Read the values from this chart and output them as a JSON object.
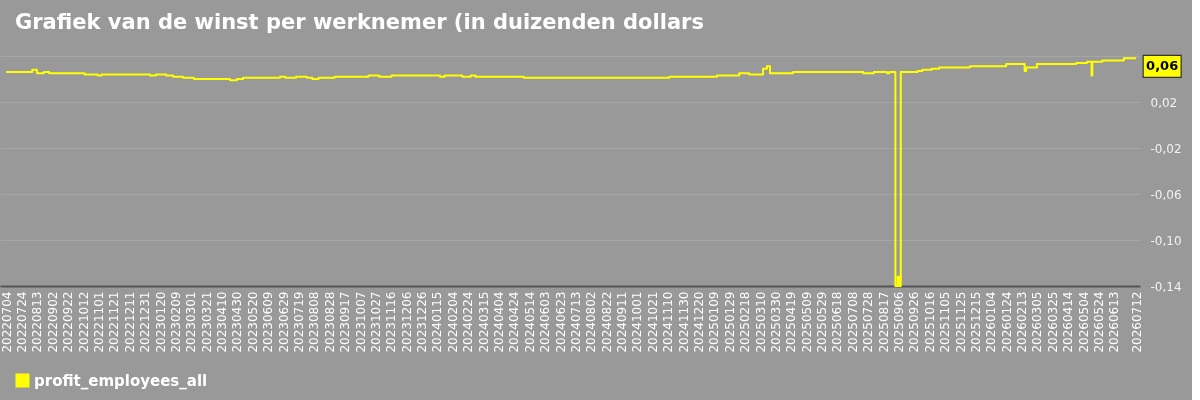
{
  "chart_data": {
    "type": "step",
    "title": "Grafiek van de winst per werknemer (in duizenden dollars",
    "x": [
      "2022-07-04",
      "2022-08-07",
      "2022-08-13",
      "2022-08-22",
      "2022-08-29",
      "2022-10-14",
      "2022-10-31",
      "2022-11-05",
      "2023-01-07",
      "2023-01-15",
      "2023-01-28",
      "2023-02-06",
      "2023-02-19",
      "2023-03-05",
      "2023-04-21",
      "2023-04-30",
      "2023-05-08",
      "2023-06-25",
      "2023-07-02",
      "2023-07-16",
      "2023-07-30",
      "2023-08-06",
      "2023-08-14",
      "2023-09-04",
      "2023-10-18",
      "2023-11-01",
      "2023-11-17",
      "2024-01-19",
      "2024-01-25",
      "2024-02-17",
      "2024-02-28",
      "2024-03-05",
      "2024-05-07",
      "2024-11-12",
      "2025-01-13",
      "2025-02-11",
      "2025-02-24",
      "2025-03-14",
      "2025-03-19",
      "2025-03-23",
      "2025-04-22",
      "2025-07-22",
      "2025-08-05",
      "2025-08-22",
      "2025-08-25",
      "2025-09-02",
      "2025-09-05",
      "2025-09-07",
      "2025-09-09",
      "2025-10-01",
      "2025-10-07",
      "2025-10-19",
      "2025-10-29",
      "2025-12-08",
      "2026-01-24",
      "2026-02-17",
      "2026-02-19",
      "2026-03-05",
      "2026-04-25",
      "2026-05-09",
      "2026-05-15",
      "2026-05-16",
      "2026-05-29",
      "2026-06-26",
      "2026-07-12"
    ],
    "series": [
      {
        "name": "profit_employees_all",
        "color": "#ffff00",
        "values": [
          0.046,
          0.048,
          0.045,
          0.046,
          0.045,
          0.044,
          0.043,
          0.044,
          0.043,
          0.044,
          0.043,
          0.042,
          0.041,
          0.04,
          0.039,
          0.04,
          0.041,
          0.042,
          0.041,
          0.042,
          0.041,
          0.04,
          0.041,
          0.042,
          0.043,
          0.042,
          0.043,
          0.042,
          0.043,
          0.042,
          0.043,
          0.042,
          0.041,
          0.042,
          0.043,
          0.045,
          0.044,
          0.049,
          0.051,
          0.045,
          0.046,
          0.045,
          0.046,
          0.045,
          0.046,
          -0.14,
          -0.132,
          -0.14,
          0.046,
          0.047,
          0.048,
          0.049,
          0.05,
          0.051,
          0.053,
          0.047,
          0.05,
          0.053,
          0.054,
          0.055,
          0.043,
          0.055,
          0.056,
          0.058,
          0.058
        ]
      }
    ],
    "xlim": [
      "2022-06-26",
      "2026-07-17"
    ],
    "xticks": [
      {
        "value": "2022-07-04",
        "label": "20220704"
      },
      {
        "value": "2022-07-24",
        "label": "20220724"
      },
      {
        "value": "2022-08-13",
        "label": "20220813"
      },
      {
        "value": "2022-09-02",
        "label": "20220902"
      },
      {
        "value": "2022-09-22",
        "label": "20220922"
      },
      {
        "value": "2022-10-12",
        "label": "20221012"
      },
      {
        "value": "2022-11-01",
        "label": "20221101"
      },
      {
        "value": "2022-11-21",
        "label": "20221121"
      },
      {
        "value": "2022-12-11",
        "label": "20221211"
      },
      {
        "value": "2022-12-31",
        "label": "20221231"
      },
      {
        "value": "2023-01-20",
        "label": "20230120"
      },
      {
        "value": "2023-02-09",
        "label": "20230209"
      },
      {
        "value": "2023-03-01",
        "label": "20230301"
      },
      {
        "value": "2023-03-21",
        "label": "20230321"
      },
      {
        "value": "2023-04-10",
        "label": "20230410"
      },
      {
        "value": "2023-04-30",
        "label": "20230430"
      },
      {
        "value": "2023-05-20",
        "label": "20230520"
      },
      {
        "value": "2023-06-09",
        "label": "20230609"
      },
      {
        "value": "2023-06-29",
        "label": "20230629"
      },
      {
        "value": "2023-07-19",
        "label": "20230719"
      },
      {
        "value": "2023-08-08",
        "label": "20230808"
      },
      {
        "value": "2023-08-28",
        "label": "20230828"
      },
      {
        "value": "2023-09-17",
        "label": "20230917"
      },
      {
        "value": "2023-10-07",
        "label": "20231007"
      },
      {
        "value": "2023-10-27",
        "label": "20231027"
      },
      {
        "value": "2023-11-16",
        "label": "20231116"
      },
      {
        "value": "2023-12-06",
        "label": "20231206"
      },
      {
        "value": "2023-12-26",
        "label": "20231226"
      },
      {
        "value": "2024-01-15",
        "label": "20240115"
      },
      {
        "value": "2024-02-04",
        "label": "20240204"
      },
      {
        "value": "2024-02-24",
        "label": "20240224"
      },
      {
        "value": "2024-03-15",
        "label": "20240315"
      },
      {
        "value": "2024-04-04",
        "label": "20240404"
      },
      {
        "value": "2024-04-24",
        "label": "20240424"
      },
      {
        "value": "2024-05-14",
        "label": "20240514"
      },
      {
        "value": "2024-06-03",
        "label": "20240603"
      },
      {
        "value": "2024-06-23",
        "label": "20240623"
      },
      {
        "value": "2024-07-13",
        "label": "20240713"
      },
      {
        "value": "2024-08-02",
        "label": "20240802"
      },
      {
        "value": "2024-08-22",
        "label": "20240822"
      },
      {
        "value": "2024-09-11",
        "label": "20240911"
      },
      {
        "value": "2024-10-01",
        "label": "20241001"
      },
      {
        "value": "2024-10-21",
        "label": "20241021"
      },
      {
        "value": "2024-11-10",
        "label": "20241110"
      },
      {
        "value": "2024-11-30",
        "label": "20241130"
      },
      {
        "value": "2024-12-20",
        "label": "20241220"
      },
      {
        "value": "2025-01-09",
        "label": "20250109"
      },
      {
        "value": "2025-01-29",
        "label": "20250129"
      },
      {
        "value": "2025-02-18",
        "label": "20250218"
      },
      {
        "value": "2025-03-10",
        "label": "20250310"
      },
      {
        "value": "2025-03-30",
        "label": "20250330"
      },
      {
        "value": "2025-04-19",
        "label": "20250419"
      },
      {
        "value": "2025-05-09",
        "label": "20250509"
      },
      {
        "value": "2025-05-29",
        "label": "20250529"
      },
      {
        "value": "2025-06-18",
        "label": "20250618"
      },
      {
        "value": "2025-07-08",
        "label": "20250708"
      },
      {
        "value": "2025-07-28",
        "label": "20250728"
      },
      {
        "value": "2025-08-17",
        "label": "20250817"
      },
      {
        "value": "2025-09-06",
        "label": "20250906"
      },
      {
        "value": "2025-09-26",
        "label": "20250926"
      },
      {
        "value": "2025-10-16",
        "label": "20251016"
      },
      {
        "value": "2025-11-05",
        "label": "20251105"
      },
      {
        "value": "2025-11-25",
        "label": "20251125"
      },
      {
        "value": "2025-12-15",
        "label": "20251215"
      },
      {
        "value": "2026-01-04",
        "label": "20260104"
      },
      {
        "value": "2026-01-24",
        "label": "20260124"
      },
      {
        "value": "2026-02-13",
        "label": "20260213"
      },
      {
        "value": "2026-03-05",
        "label": "20260305"
      },
      {
        "value": "2026-03-25",
        "label": "20260325"
      },
      {
        "value": "2026-04-14",
        "label": "20260414"
      },
      {
        "value": "2026-05-04",
        "label": "20260504"
      },
      {
        "value": "2026-05-24",
        "label": "20260524"
      },
      {
        "value": "2026-06-13",
        "label": "20260613"
      },
      {
        "value": "2026-07-12",
        "label": "20260712"
      }
    ],
    "ylim": [
      -0.14,
      0.06
    ],
    "yticks": [
      {
        "value": -0.14,
        "label": "-0,14"
      },
      {
        "value": -0.1,
        "label": "-0,10"
      },
      {
        "value": -0.06,
        "label": "-0,06"
      },
      {
        "value": -0.02,
        "label": "-0,02"
      },
      {
        "value": 0.02,
        "label": "0,02"
      },
      {
        "value": 0.06,
        "label": null
      }
    ],
    "grid": "y",
    "legend": "bottom left",
    "annotations": [
      {
        "text": "0,06",
        "x": "2026-07-12",
        "y": 0.058
      }
    ]
  }
}
